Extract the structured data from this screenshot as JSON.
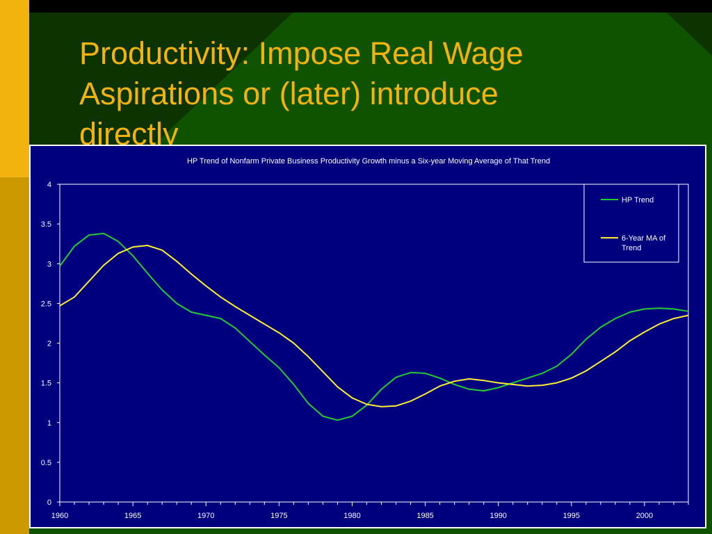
{
  "slide": {
    "title_lines": [
      "Productivity:  Impose Real Wage",
      "Aspirations or (later) introduce",
      "directly"
    ],
    "colors": {
      "background": "#0d3300",
      "title": "#f2b30f",
      "band_yellow": "#f2b30f",
      "band_gold": "#cc9900",
      "triangle": "#0f5200"
    }
  },
  "chart_data": {
    "type": "line",
    "title": "HP Trend of Nonfarm Private Business Productivity Growth minus a Six-year Moving Average of That Trend",
    "xlabel": "",
    "ylabel": "",
    "xlim": [
      1960,
      2003
    ],
    "ylim": [
      0,
      4
    ],
    "x_ticks": [
      "1960",
      "1965",
      "1970",
      "1975",
      "1980",
      "1985",
      "1990",
      "1995",
      "2000"
    ],
    "y_ticks": [
      "0",
      "0.5",
      "1",
      "1.5",
      "2",
      "2.5",
      "3",
      "3.5",
      "4"
    ],
    "grid": false,
    "legend_position": "top-right",
    "background": "#00007f",
    "series": [
      {
        "name": "HP Trend",
        "color": "#22cc33",
        "points": [
          [
            1960,
            2.97
          ],
          [
            1961,
            3.22
          ],
          [
            1962,
            3.36
          ],
          [
            1963,
            3.38
          ],
          [
            1964,
            3.28
          ],
          [
            1965,
            3.1
          ],
          [
            1966,
            2.88
          ],
          [
            1967,
            2.67
          ],
          [
            1968,
            2.5
          ],
          [
            1969,
            2.39
          ],
          [
            1970,
            2.35
          ],
          [
            1971,
            2.31
          ],
          [
            1972,
            2.19
          ],
          [
            1973,
            2.02
          ],
          [
            1974,
            1.85
          ],
          [
            1975,
            1.69
          ],
          [
            1976,
            1.48
          ],
          [
            1977,
            1.24
          ],
          [
            1978,
            1.08
          ],
          [
            1979,
            1.03
          ],
          [
            1980,
            1.08
          ],
          [
            1981,
            1.22
          ],
          [
            1982,
            1.42
          ],
          [
            1983,
            1.57
          ],
          [
            1984,
            1.63
          ],
          [
            1985,
            1.62
          ],
          [
            1986,
            1.56
          ],
          [
            1987,
            1.48
          ],
          [
            1988,
            1.42
          ],
          [
            1989,
            1.4
          ],
          [
            1990,
            1.44
          ],
          [
            1991,
            1.5
          ],
          [
            1992,
            1.56
          ],
          [
            1993,
            1.62
          ],
          [
            1994,
            1.71
          ],
          [
            1995,
            1.86
          ],
          [
            1996,
            2.05
          ],
          [
            1997,
            2.2
          ],
          [
            1998,
            2.31
          ],
          [
            1999,
            2.39
          ],
          [
            2000,
            2.43
          ],
          [
            2001,
            2.44
          ],
          [
            2002,
            2.43
          ],
          [
            2003,
            2.4
          ]
        ]
      },
      {
        "name": "6-Year MA of Trend",
        "color": "#ffee33",
        "points": [
          [
            1960,
            2.47
          ],
          [
            1961,
            2.58
          ],
          [
            1962,
            2.78
          ],
          [
            1963,
            2.98
          ],
          [
            1964,
            3.13
          ],
          [
            1965,
            3.21
          ],
          [
            1966,
            3.23
          ],
          [
            1967,
            3.17
          ],
          [
            1968,
            3.03
          ],
          [
            1969,
            2.87
          ],
          [
            1970,
            2.72
          ],
          [
            1971,
            2.58
          ],
          [
            1972,
            2.46
          ],
          [
            1973,
            2.35
          ],
          [
            1974,
            2.24
          ],
          [
            1975,
            2.13
          ],
          [
            1976,
            2.0
          ],
          [
            1977,
            1.83
          ],
          [
            1978,
            1.64
          ],
          [
            1979,
            1.45
          ],
          [
            1980,
            1.31
          ],
          [
            1981,
            1.23
          ],
          [
            1982,
            1.2
          ],
          [
            1983,
            1.21
          ],
          [
            1984,
            1.27
          ],
          [
            1985,
            1.36
          ],
          [
            1986,
            1.46
          ],
          [
            1987,
            1.52
          ],
          [
            1988,
            1.55
          ],
          [
            1989,
            1.53
          ],
          [
            1990,
            1.5
          ],
          [
            1991,
            1.48
          ],
          [
            1992,
            1.46
          ],
          [
            1993,
            1.47
          ],
          [
            1994,
            1.5
          ],
          [
            1995,
            1.56
          ],
          [
            1996,
            1.65
          ],
          [
            1997,
            1.77
          ],
          [
            1998,
            1.89
          ],
          [
            1999,
            2.03
          ],
          [
            2000,
            2.14
          ],
          [
            2001,
            2.24
          ],
          [
            2002,
            2.31
          ],
          [
            2003,
            2.35
          ]
        ]
      }
    ],
    "legend_entries": [
      {
        "label_lines": [
          "HP Trend"
        ]
      },
      {
        "label_lines": [
          "6-Year MA of",
          "Trend"
        ]
      }
    ]
  }
}
